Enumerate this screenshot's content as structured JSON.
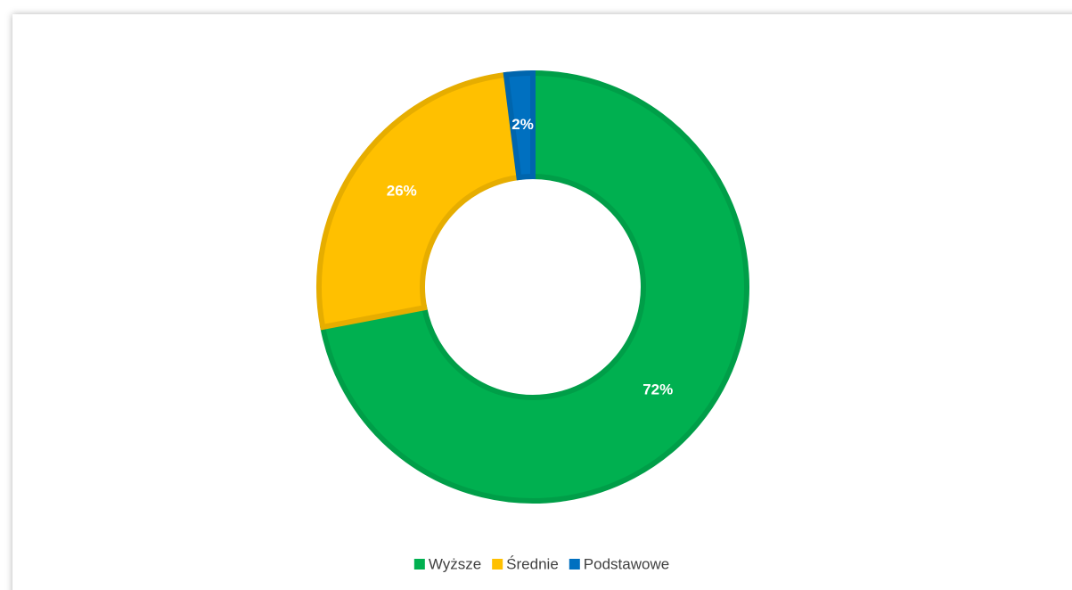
{
  "chart_data": {
    "type": "donut",
    "categories": [
      "Wyższe",
      "Średnie",
      "Podstawowe"
    ],
    "values": [
      72,
      26,
      2
    ],
    "value_labels": [
      "72%",
      "26%",
      "2%"
    ],
    "colors": [
      "#00b050",
      "#ffc000",
      "#0070c0"
    ],
    "legend": "bottom"
  }
}
